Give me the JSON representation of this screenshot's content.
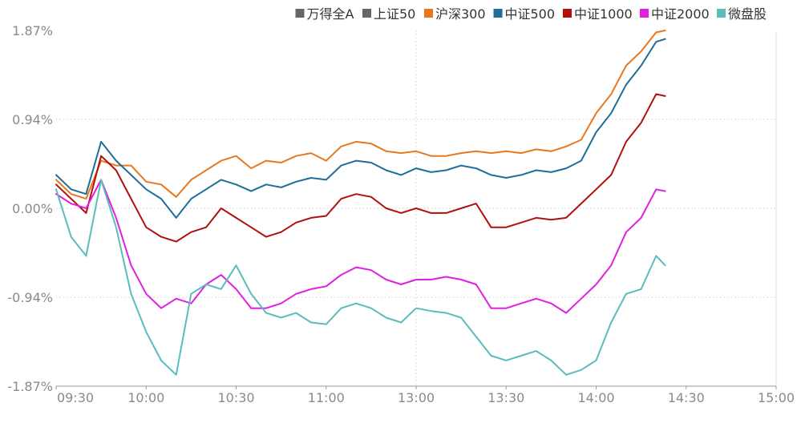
{
  "chart_data": {
    "type": "line",
    "ylim": [
      -1.87,
      1.87
    ],
    "y_ticks": [
      "1.87%",
      "0.94%",
      "0.00%",
      "-0.94%",
      "-1.87%"
    ],
    "x_ticks": [
      "09:30",
      "10:00",
      "10:30",
      "11:00",
      "13:00",
      "13:30",
      "14:00",
      "14:30",
      "15:00"
    ],
    "grid": "dotted",
    "legend_position": "top-right",
    "series": [
      {
        "name": "万得全A",
        "color": "#666666",
        "legend_only": true,
        "values": []
      },
      {
        "name": "上证50",
        "color": "#666666",
        "legend_only": true,
        "values": []
      },
      {
        "name": "沪深300",
        "color": "#e8781e",
        "values": [
          [
            0,
            0.3
          ],
          [
            5,
            0.15
          ],
          [
            10,
            0.1
          ],
          [
            15,
            0.5
          ],
          [
            20,
            0.45
          ],
          [
            25,
            0.45
          ],
          [
            30,
            0.28
          ],
          [
            35,
            0.25
          ],
          [
            40,
            0.12
          ],
          [
            45,
            0.3
          ],
          [
            50,
            0.4
          ],
          [
            55,
            0.5
          ],
          [
            60,
            0.55
          ],
          [
            65,
            0.42
          ],
          [
            70,
            0.5
          ],
          [
            75,
            0.48
          ],
          [
            80,
            0.55
          ],
          [
            85,
            0.58
          ],
          [
            90,
            0.5
          ],
          [
            95,
            0.65
          ],
          [
            100,
            0.7
          ],
          [
            105,
            0.68
          ],
          [
            110,
            0.6
          ],
          [
            115,
            0.58
          ],
          [
            120,
            0.6
          ],
          [
            125,
            0.55
          ],
          [
            130,
            0.55
          ],
          [
            135,
            0.58
          ],
          [
            140,
            0.6
          ],
          [
            145,
            0.58
          ],
          [
            150,
            0.6
          ],
          [
            155,
            0.58
          ],
          [
            160,
            0.62
          ],
          [
            165,
            0.6
          ],
          [
            170,
            0.65
          ],
          [
            175,
            0.72
          ],
          [
            180,
            1.0
          ],
          [
            185,
            1.2
          ],
          [
            190,
            1.5
          ],
          [
            195,
            1.65
          ],
          [
            200,
            1.85
          ],
          [
            203,
            1.87
          ]
        ]
      },
      {
        "name": "中证500",
        "color": "#1f6e9a",
        "values": [
          [
            0,
            0.35
          ],
          [
            5,
            0.2
          ],
          [
            10,
            0.15
          ],
          [
            15,
            0.7
          ],
          [
            20,
            0.5
          ],
          [
            25,
            0.35
          ],
          [
            30,
            0.2
          ],
          [
            35,
            0.1
          ],
          [
            40,
            -0.1
          ],
          [
            45,
            0.1
          ],
          [
            50,
            0.2
          ],
          [
            55,
            0.3
          ],
          [
            60,
            0.25
          ],
          [
            65,
            0.18
          ],
          [
            70,
            0.25
          ],
          [
            75,
            0.22
          ],
          [
            80,
            0.28
          ],
          [
            85,
            0.32
          ],
          [
            90,
            0.3
          ],
          [
            95,
            0.45
          ],
          [
            100,
            0.5
          ],
          [
            105,
            0.48
          ],
          [
            110,
            0.4
          ],
          [
            115,
            0.35
          ],
          [
            120,
            0.42
          ],
          [
            125,
            0.38
          ],
          [
            130,
            0.4
          ],
          [
            135,
            0.45
          ],
          [
            140,
            0.42
          ],
          [
            145,
            0.35
          ],
          [
            150,
            0.32
          ],
          [
            155,
            0.35
          ],
          [
            160,
            0.4
          ],
          [
            165,
            0.38
          ],
          [
            170,
            0.42
          ],
          [
            175,
            0.5
          ],
          [
            180,
            0.8
          ],
          [
            185,
            1.0
          ],
          [
            190,
            1.3
          ],
          [
            195,
            1.5
          ],
          [
            200,
            1.75
          ],
          [
            203,
            1.78
          ]
        ]
      },
      {
        "name": "中证1000",
        "color": "#b01010",
        "values": [
          [
            0,
            0.25
          ],
          [
            5,
            0.1
          ],
          [
            10,
            -0.05
          ],
          [
            15,
            0.55
          ],
          [
            20,
            0.4
          ],
          [
            25,
            0.1
          ],
          [
            30,
            -0.2
          ],
          [
            35,
            -0.3
          ],
          [
            40,
            -0.35
          ],
          [
            45,
            -0.25
          ],
          [
            50,
            -0.2
          ],
          [
            55,
            0.0
          ],
          [
            60,
            -0.1
          ],
          [
            65,
            -0.2
          ],
          [
            70,
            -0.3
          ],
          [
            75,
            -0.25
          ],
          [
            80,
            -0.15
          ],
          [
            85,
            -0.1
          ],
          [
            90,
            -0.08
          ],
          [
            95,
            0.1
          ],
          [
            100,
            0.15
          ],
          [
            105,
            0.12
          ],
          [
            110,
            0.0
          ],
          [
            115,
            -0.05
          ],
          [
            120,
            0.0
          ],
          [
            125,
            -0.05
          ],
          [
            130,
            -0.05
          ],
          [
            135,
            0.0
          ],
          [
            140,
            0.05
          ],
          [
            145,
            -0.2
          ],
          [
            150,
            -0.2
          ],
          [
            155,
            -0.15
          ],
          [
            160,
            -0.1
          ],
          [
            165,
            -0.12
          ],
          [
            170,
            -0.1
          ],
          [
            175,
            0.05
          ],
          [
            180,
            0.2
          ],
          [
            185,
            0.35
          ],
          [
            190,
            0.7
          ],
          [
            195,
            0.9
          ],
          [
            200,
            1.2
          ],
          [
            203,
            1.18
          ]
        ]
      },
      {
        "name": "中证2000",
        "color": "#e020e0",
        "values": [
          [
            0,
            0.15
          ],
          [
            5,
            0.05
          ],
          [
            10,
            0.0
          ],
          [
            15,
            0.3
          ],
          [
            20,
            -0.1
          ],
          [
            25,
            -0.6
          ],
          [
            30,
            -0.9
          ],
          [
            35,
            -1.05
          ],
          [
            40,
            -0.95
          ],
          [
            45,
            -1.0
          ],
          [
            50,
            -0.8
          ],
          [
            55,
            -0.7
          ],
          [
            60,
            -0.85
          ],
          [
            65,
            -1.05
          ],
          [
            70,
            -1.05
          ],
          [
            75,
            -1.0
          ],
          [
            80,
            -0.9
          ],
          [
            85,
            -0.85
          ],
          [
            90,
            -0.82
          ],
          [
            95,
            -0.7
          ],
          [
            100,
            -0.62
          ],
          [
            105,
            -0.65
          ],
          [
            110,
            -0.75
          ],
          [
            115,
            -0.8
          ],
          [
            120,
            -0.75
          ],
          [
            125,
            -0.75
          ],
          [
            130,
            -0.72
          ],
          [
            135,
            -0.75
          ],
          [
            140,
            -0.8
          ],
          [
            145,
            -1.05
          ],
          [
            150,
            -1.05
          ],
          [
            155,
            -1.0
          ],
          [
            160,
            -0.95
          ],
          [
            165,
            -1.0
          ],
          [
            170,
            -1.1
          ],
          [
            175,
            -0.95
          ],
          [
            180,
            -0.8
          ],
          [
            185,
            -0.6
          ],
          [
            190,
            -0.25
          ],
          [
            195,
            -0.1
          ],
          [
            200,
            0.2
          ],
          [
            203,
            0.18
          ]
        ]
      },
      {
        "name": "微盘股",
        "color": "#5bbcbc",
        "values": [
          [
            0,
            0.2
          ],
          [
            5,
            -0.3
          ],
          [
            10,
            -0.5
          ],
          [
            15,
            0.3
          ],
          [
            20,
            -0.2
          ],
          [
            25,
            -0.9
          ],
          [
            30,
            -1.3
          ],
          [
            35,
            -1.6
          ],
          [
            40,
            -1.75
          ],
          [
            45,
            -0.9
          ],
          [
            50,
            -0.8
          ],
          [
            55,
            -0.85
          ],
          [
            60,
            -0.6
          ],
          [
            65,
            -0.9
          ],
          [
            70,
            -1.1
          ],
          [
            75,
            -1.15
          ],
          [
            80,
            -1.1
          ],
          [
            85,
            -1.2
          ],
          [
            90,
            -1.22
          ],
          [
            95,
            -1.05
          ],
          [
            100,
            -1.0
          ],
          [
            105,
            -1.05
          ],
          [
            110,
            -1.15
          ],
          [
            115,
            -1.2
          ],
          [
            120,
            -1.05
          ],
          [
            125,
            -1.08
          ],
          [
            130,
            -1.1
          ],
          [
            135,
            -1.15
          ],
          [
            140,
            -1.35
          ],
          [
            145,
            -1.55
          ],
          [
            150,
            -1.6
          ],
          [
            155,
            -1.55
          ],
          [
            160,
            -1.5
          ],
          [
            165,
            -1.6
          ],
          [
            170,
            -1.75
          ],
          [
            175,
            -1.7
          ],
          [
            180,
            -1.6
          ],
          [
            185,
            -1.2
          ],
          [
            190,
            -0.9
          ],
          [
            195,
            -0.85
          ],
          [
            200,
            -0.5
          ],
          [
            203,
            -0.6
          ]
        ]
      }
    ]
  }
}
